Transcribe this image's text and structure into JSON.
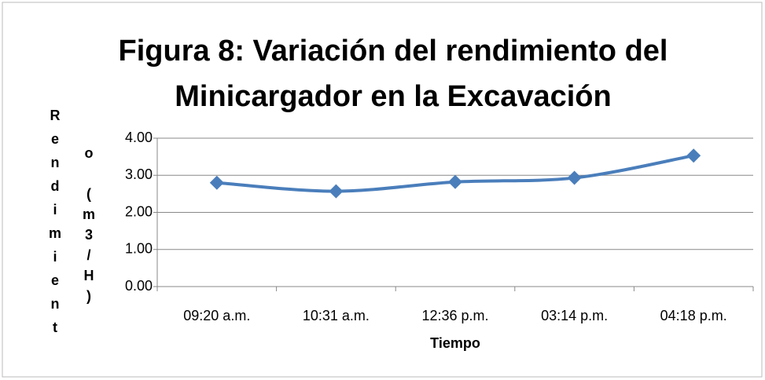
{
  "chart_data": {
    "type": "line",
    "title": "Figura 8: Variación del rendimiento del Minicargador en la Excavación",
    "x_label": "Tiempo",
    "y_label": "Rendimiento (m3/H)",
    "categories": [
      "09:20 a.m.",
      "10:31 a.m.",
      "12:36 p.m.",
      "03:14 p.m.",
      "04:18 p.m."
    ],
    "series": [
      {
        "name": "Rendimiento",
        "color": "#4a7ebb",
        "values": [
          2.8,
          2.57,
          2.82,
          2.93,
          3.53
        ]
      }
    ],
    "ylim": [
      0,
      4
    ],
    "yticks": [
      {
        "value": 0,
        "label": "0.00"
      },
      {
        "value": 1,
        "label": "1.00"
      },
      {
        "value": 2,
        "label": "2.00"
      },
      {
        "value": 3,
        "label": "3.00"
      },
      {
        "value": 4,
        "label": "4.00"
      }
    ],
    "grid": true,
    "smooth": true
  }
}
